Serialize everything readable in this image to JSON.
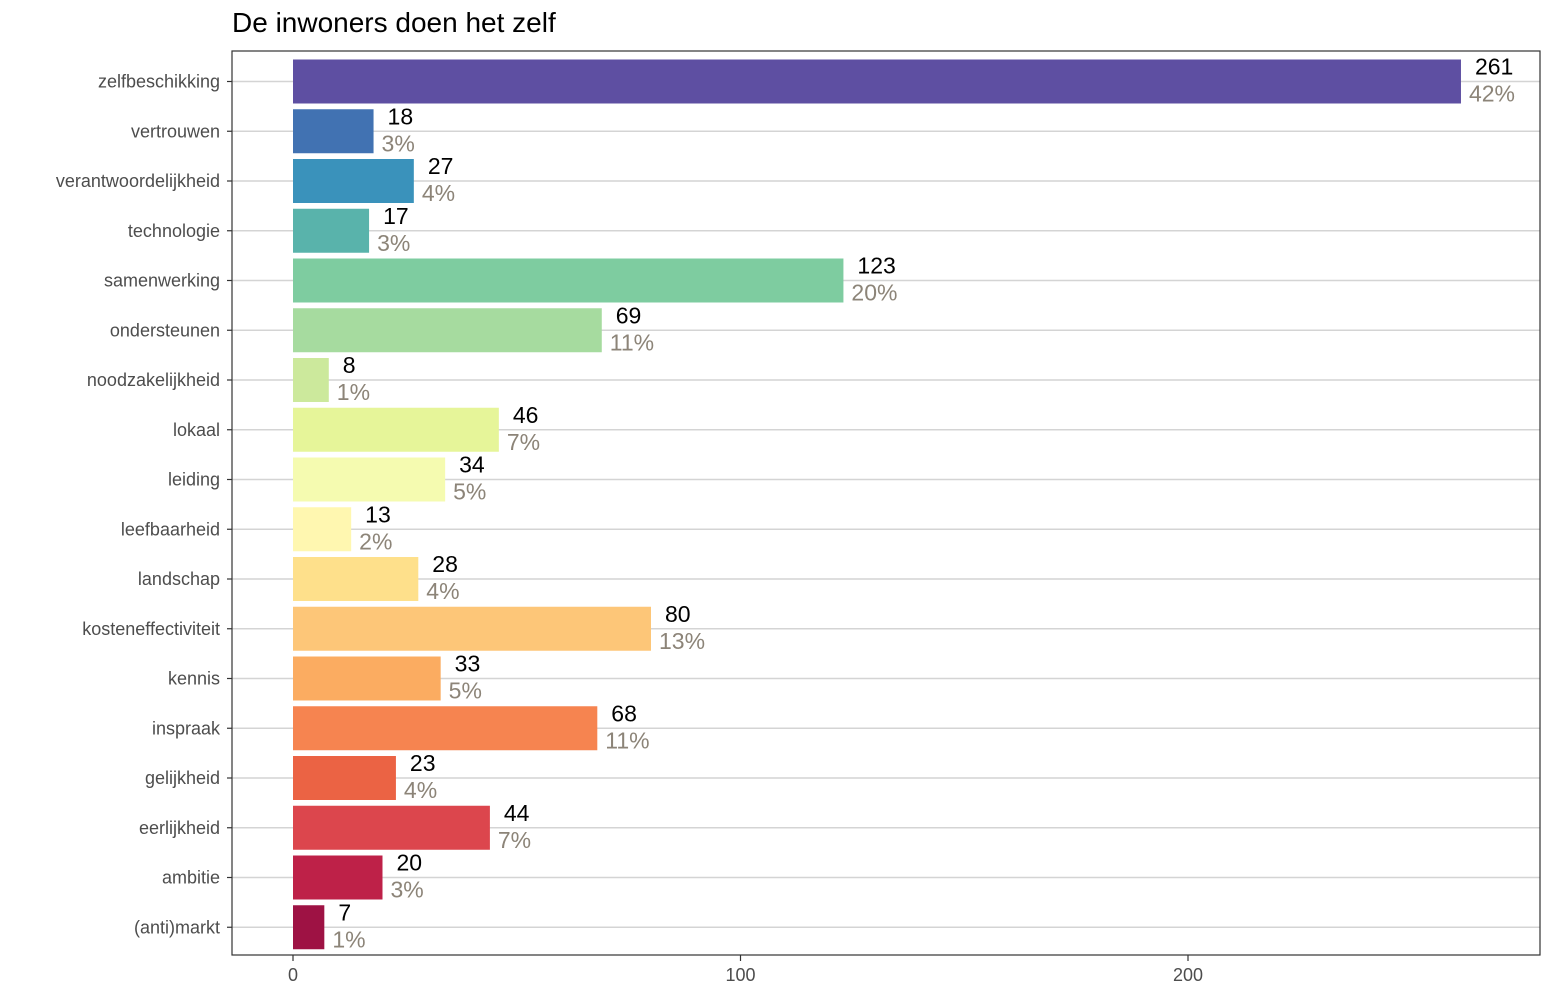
{
  "chart_data": {
    "type": "bar",
    "orientation": "horizontal",
    "title": "De inwoners doen het zelf",
    "xlabel": "",
    "ylabel": "",
    "xlim": [
      0,
      280
    ],
    "x_ticks": [
      0,
      100,
      200
    ],
    "grid": "horizontal major lines",
    "legend": "none",
    "categories": [
      "zelfbeschikking",
      "vertrouwen",
      "verantwoordelijkheid",
      "technologie",
      "samenwerking",
      "ondersteunen",
      "noodzakelijkheid",
      "lokaal",
      "leiding",
      "leefbaarheid",
      "landschap",
      "kosteneffectiviteit",
      "kennis",
      "inspraak",
      "gelijkheid",
      "eerlijkheid",
      "ambitie",
      "(anti)markt"
    ],
    "values": [
      261,
      18,
      27,
      17,
      123,
      69,
      8,
      46,
      34,
      13,
      28,
      80,
      33,
      68,
      23,
      44,
      20,
      7
    ],
    "percent_labels": [
      "42%",
      "3%",
      "4%",
      "3%",
      "20%",
      "11%",
      "1%",
      "7%",
      "5%",
      "2%",
      "4%",
      "13%",
      "5%",
      "11%",
      "4%",
      "7%",
      "3%",
      "1%"
    ],
    "colors": [
      "#5e4fa2",
      "#4172b2",
      "#3a92bb",
      "#59b3ab",
      "#7ecca0",
      "#a6db9f",
      "#cce99c",
      "#e6f599",
      "#f5fbb0",
      "#fff7b0",
      "#fee08b",
      "#fdc678",
      "#fbac61",
      "#f68450",
      "#eb6344",
      "#dc464d",
      "#be2148",
      "#9e1244"
    ]
  }
}
